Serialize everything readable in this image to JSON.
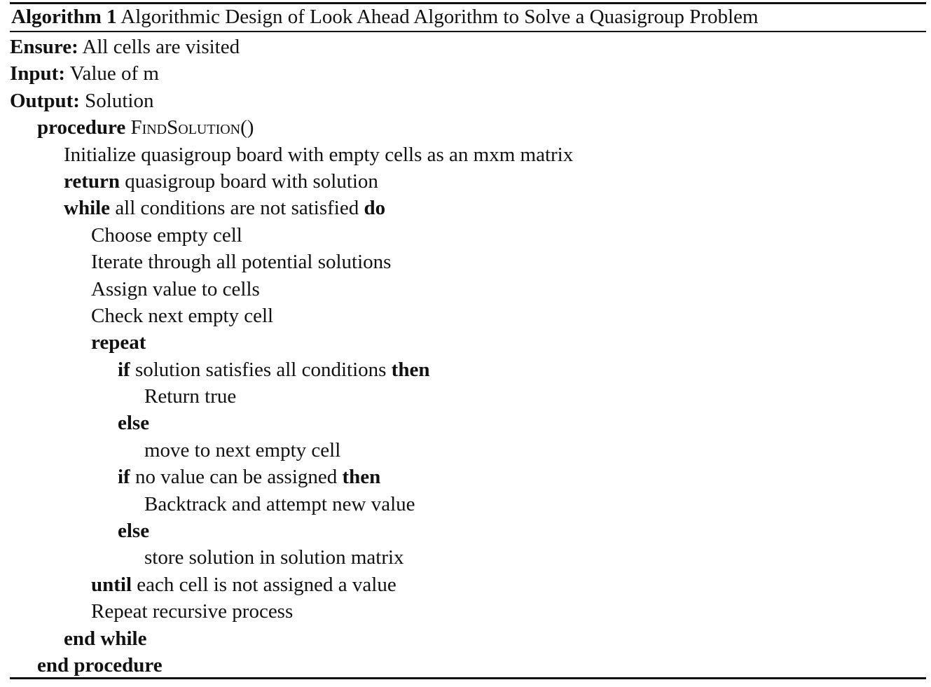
{
  "caption": {
    "label": "Algorithm 1",
    "title": "Algorithmic Design of Look Ahead Algorithm to Solve a Quasigroup Problem"
  },
  "header": {
    "ensure_kw": "Ensure:",
    "ensure_text": "All cells are visited",
    "input_kw": "Input:",
    "input_text": "Value of m",
    "output_kw": "Output:",
    "output_text": "Solution"
  },
  "body": {
    "procedure_kw": "procedure",
    "procedure_name": "FindSolution",
    "procedure_parens": "()",
    "init": "Initialize quasigroup board with empty cells as an mxm matrix",
    "return_kw": "return",
    "return_text": "quasigroup board with solution",
    "while_kw": "while",
    "while_cond": "all conditions are not satisfied",
    "do_kw": "do",
    "choose": "Choose empty cell",
    "iterate": "Iterate through all potential solutions",
    "assign": "Assign value to cells",
    "check": "Check next empty cell",
    "repeat_kw": "repeat",
    "if1_kw": "if",
    "if1_cond": "solution satisfies all conditions",
    "then1_kw": "then",
    "return_true": "Return true",
    "else1_kw": "else",
    "move_next": "move to next empty cell",
    "if2_kw": "if",
    "if2_cond": "no value can be assigned",
    "then2_kw": "then",
    "backtrack": "Backtrack and attempt new value",
    "else2_kw": "else",
    "store": "store solution in solution matrix",
    "until_kw": "until",
    "until_cond": "each cell is not assigned a value",
    "repeat_recursive": "Repeat recursive process",
    "end_while": "end while",
    "end_procedure": "end procedure"
  }
}
